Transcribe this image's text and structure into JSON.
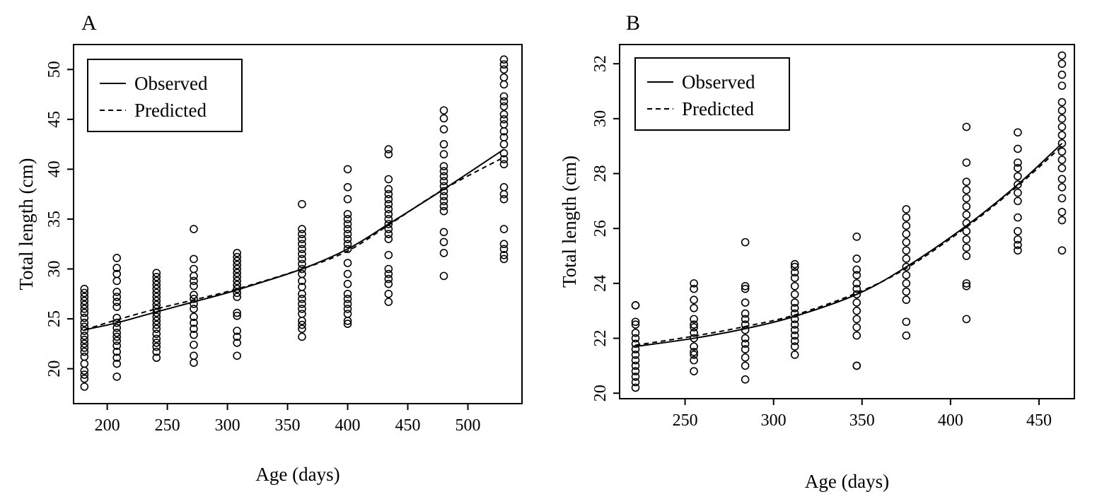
{
  "chart_data": [
    {
      "panel": "A",
      "type": "scatter",
      "xlabel": "Age (days)",
      "ylabel": "Total length (cm)",
      "xlim": [
        172,
        545
      ],
      "ylim": [
        16.5,
        52.5
      ],
      "xticks": [
        200,
        250,
        300,
        350,
        400,
        450,
        500
      ],
      "yticks": [
        20,
        25,
        30,
        35,
        40,
        45,
        50
      ],
      "grid": false,
      "legend": {
        "placement": "top-left",
        "entries": [
          {
            "label": "Observed",
            "style": "solid"
          },
          {
            "label": "Predicted",
            "style": "dashed"
          }
        ]
      },
      "points": [
        {
          "x": 181,
          "y": [
            18.2,
            19.0,
            19.4,
            19.8,
            20.5,
            21.2,
            21.7,
            22.1,
            22.5,
            22.9,
            23.3,
            23.8,
            24.2,
            24.6,
            25.1,
            25.6,
            26.0,
            26.4,
            26.8,
            27.2,
            27.6,
            28.0
          ]
        },
        {
          "x": 208,
          "y": [
            19.2,
            20.5,
            21.1,
            21.7,
            22.3,
            22.8,
            23.2,
            23.6,
            24.1,
            24.6,
            25.1,
            26.2,
            26.7,
            27.2,
            27.7,
            28.8,
            29.5,
            30.1,
            31.1
          ]
        },
        {
          "x": 241,
          "y": [
            21.1,
            21.7,
            22.2,
            22.6,
            23.0,
            23.5,
            24.0,
            24.4,
            24.8,
            25.2,
            25.6,
            26.0,
            26.4,
            26.8,
            27.2,
            27.6,
            28.0,
            28.4,
            28.8,
            29.2,
            29.6
          ]
        },
        {
          "x": 272,
          "y": [
            20.6,
            21.3,
            22.4,
            23.4,
            24.0,
            24.6,
            25.2,
            26.0,
            26.5,
            27.0,
            27.4,
            28.3,
            28.8,
            29.3,
            30.0,
            31.0,
            34.0
          ]
        },
        {
          "x": 308,
          "y": [
            21.3,
            22.6,
            23.2,
            23.8,
            25.3,
            25.6,
            27.2,
            27.6,
            28.0,
            28.4,
            28.8,
            29.2,
            29.6,
            30.0,
            30.4,
            30.8,
            31.2,
            31.6
          ]
        },
        {
          "x": 362,
          "y": [
            23.2,
            24.0,
            24.4,
            24.8,
            25.5,
            26.0,
            26.5,
            27.0,
            27.5,
            28.2,
            28.8,
            29.5,
            30.0,
            30.5,
            31.0,
            31.5,
            32.0,
            32.5,
            33.0,
            33.5,
            34.0,
            36.5
          ]
        },
        {
          "x": 400,
          "y": [
            24.5,
            24.8,
            25.5,
            26.0,
            26.5,
            27.0,
            27.5,
            28.5,
            29.5,
            30.6,
            32.0,
            32.5,
            33.0,
            33.5,
            34.0,
            34.5,
            35.0,
            35.5,
            37.0,
            38.2,
            40.0
          ]
        },
        {
          "x": 434,
          "y": [
            26.7,
            27.5,
            28.5,
            29.0,
            29.5,
            30.0,
            31.4,
            33.0,
            33.5,
            34.0,
            34.5,
            35.0,
            35.5,
            36.0,
            36.5,
            37.0,
            37.5,
            38.0,
            39.0,
            41.5,
            42.0
          ]
        },
        {
          "x": 480,
          "y": [
            29.3,
            31.6,
            32.7,
            33.7,
            35.8,
            36.3,
            36.8,
            37.3,
            37.8,
            38.3,
            38.8,
            39.3,
            39.8,
            40.3,
            41.5,
            42.5,
            44.0,
            45.1,
            45.9
          ]
        },
        {
          "x": 530,
          "y": [
            31.0,
            31.4,
            32.0,
            32.5,
            34.0,
            37.0,
            37.5,
            38.2,
            40.5,
            41.0,
            41.6,
            42.5,
            43.2,
            43.8,
            44.5,
            45.0,
            45.5,
            46.3,
            46.8,
            47.3,
            48.5,
            49.2,
            50.0,
            50.5,
            51.0
          ]
        }
      ],
      "series": [
        {
          "name": "Observed",
          "style": "solid",
          "x": [
            181,
            208,
            241,
            272,
            308,
            362,
            400,
            434,
            480,
            530
          ],
          "y": [
            23.9,
            24.6,
            25.7,
            26.7,
            27.9,
            30.0,
            32.0,
            34.5,
            38.0,
            42.0
          ]
        },
        {
          "name": "Predicted",
          "style": "dashed",
          "x": [
            181,
            208,
            241,
            272,
            308,
            362,
            400,
            434,
            480,
            530
          ],
          "y": [
            23.9,
            24.9,
            26.0,
            26.9,
            28.0,
            30.0,
            31.8,
            34.4,
            38.0,
            41.2
          ]
        }
      ]
    },
    {
      "panel": "B",
      "type": "scatter",
      "xlabel": "Age (days)",
      "ylabel": "Total length (cm)",
      "xlim": [
        213,
        470
      ],
      "ylim": [
        19.8,
        32.7
      ],
      "xticks": [
        250,
        300,
        350,
        400,
        450
      ],
      "yticks": [
        20,
        22,
        24,
        26,
        28,
        30,
        32
      ],
      "grid": false,
      "legend": {
        "placement": "top-left",
        "entries": [
          {
            "label": "Observed",
            "style": "solid"
          },
          {
            "label": "Predicted",
            "style": "dashed"
          }
        ]
      },
      "points": [
        {
          "x": 222,
          "y": [
            20.2,
            20.4,
            20.6,
            20.8,
            21.0,
            21.2,
            21.4,
            21.6,
            21.8,
            22.0,
            22.2,
            22.5,
            22.6,
            23.2,
            23.2
          ]
        },
        {
          "x": 255,
          "y": [
            20.8,
            21.2,
            21.4,
            21.5,
            21.7,
            22.0,
            22.2,
            22.4,
            22.5,
            22.7,
            23.1,
            23.4,
            23.8,
            24.0
          ]
        },
        {
          "x": 284,
          "y": [
            20.5,
            21.0,
            21.3,
            21.6,
            21.8,
            22.0,
            22.3,
            22.5,
            22.7,
            22.9,
            23.3,
            23.8,
            23.9,
            25.5
          ]
        },
        {
          "x": 312,
          "y": [
            21.4,
            21.7,
            21.9,
            22.1,
            22.3,
            22.5,
            22.7,
            22.9,
            23.1,
            23.3,
            23.6,
            23.9,
            24.2,
            24.4,
            24.6,
            24.7
          ]
        },
        {
          "x": 347,
          "y": [
            21.0,
            21.0,
            22.1,
            22.4,
            22.7,
            23.0,
            23.3,
            23.6,
            23.8,
            24.0,
            24.3,
            24.5,
            24.9,
            25.7
          ]
        },
        {
          "x": 375,
          "y": [
            22.1,
            22.6,
            23.4,
            23.7,
            24.0,
            24.3,
            24.6,
            24.9,
            25.2,
            25.5,
            25.8,
            26.1,
            26.4,
            26.7
          ]
        },
        {
          "x": 409,
          "y": [
            22.7,
            23.9,
            24.0,
            25.0,
            25.3,
            25.6,
            25.9,
            26.2,
            26.5,
            26.8,
            27.1,
            27.4,
            27.7,
            28.4,
            29.7
          ]
        },
        {
          "x": 438,
          "y": [
            25.2,
            25.4,
            25.6,
            25.9,
            26.4,
            27.0,
            27.3,
            27.6,
            27.9,
            28.2,
            28.4,
            28.9,
            29.5
          ]
        },
        {
          "x": 463,
          "y": [
            25.2,
            26.3,
            26.6,
            27.1,
            27.5,
            27.8,
            28.2,
            28.5,
            28.8,
            29.1,
            29.4,
            29.7,
            30.0,
            30.3,
            30.6,
            31.2,
            31.6,
            32.0,
            32.3
          ]
        }
      ],
      "series": [
        {
          "name": "Observed",
          "style": "solid",
          "x": [
            222,
            255,
            284,
            312,
            347,
            375,
            409,
            438,
            463
          ],
          "y": [
            21.7,
            22.0,
            22.35,
            22.8,
            23.6,
            24.6,
            26.1,
            27.6,
            29.1
          ]
        },
        {
          "name": "Predicted",
          "style": "dashed",
          "x": [
            222,
            255,
            284,
            312,
            347,
            375,
            409,
            438,
            463
          ],
          "y": [
            21.75,
            22.08,
            22.43,
            22.85,
            23.65,
            24.55,
            26.05,
            27.55,
            29.0
          ]
        }
      ]
    }
  ]
}
